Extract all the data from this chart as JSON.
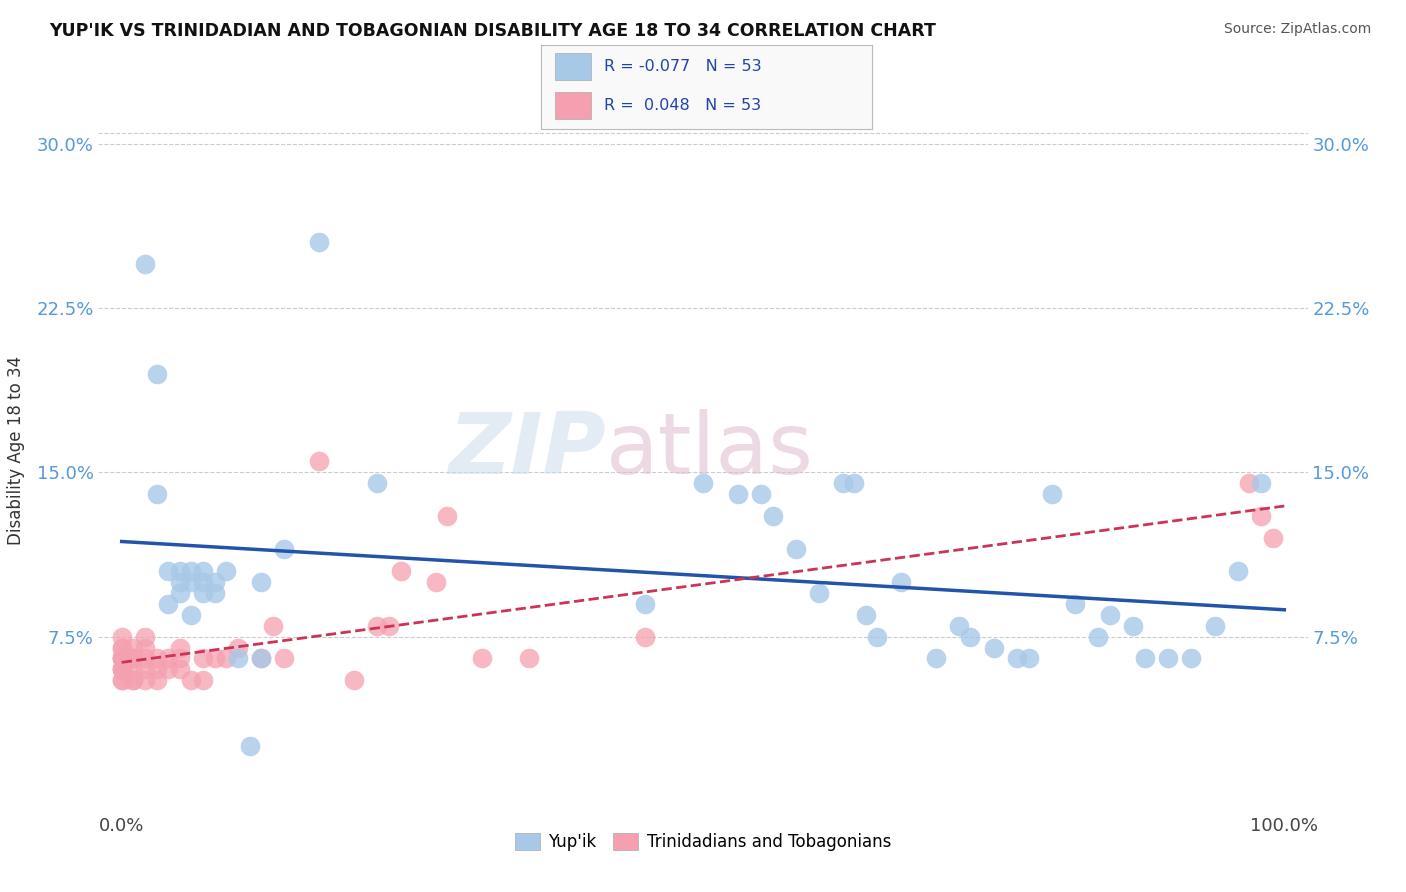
{
  "title": "YUP'IK VS TRINIDADIAN AND TOBAGONIAN DISABILITY AGE 18 TO 34 CORRELATION CHART",
  "source": "Source: ZipAtlas.com",
  "ylabel": "Disability Age 18 to 34",
  "watermark_part1": "ZIP",
  "watermark_part2": "atlas",
  "legend_labels": [
    "Yup'ik",
    "Trinidadians and Tobagonians"
  ],
  "yupik_R": "-0.077",
  "yupik_N": "53",
  "trinidadian_R": "0.048",
  "trinidadian_N": "53",
  "xlim": [
    -0.02,
    1.02
  ],
  "ylim": [
    -0.005,
    0.325
  ],
  "x_ticks": [
    0.0,
    1.0
  ],
  "x_tick_labels": [
    "0.0%",
    "100.0%"
  ],
  "y_ticks": [
    0.075,
    0.15,
    0.225,
    0.3
  ],
  "y_tick_labels": [
    "7.5%",
    "15.0%",
    "22.5%",
    "30.0%"
  ],
  "yupik_color": "#a8c8e8",
  "trinidadian_color": "#f5a0b0",
  "yupik_line_color": "#2255aa",
  "trinidadian_line_color": "#cc3355",
  "background_color": "#ffffff",
  "grid_color": "#cccccc",
  "yupik_x": [
    0.02,
    0.03,
    0.03,
    0.04,
    0.04,
    0.05,
    0.05,
    0.05,
    0.06,
    0.06,
    0.06,
    0.07,
    0.07,
    0.07,
    0.08,
    0.08,
    0.09,
    0.1,
    0.11,
    0.12,
    0.12,
    0.14,
    0.17,
    0.22,
    0.45,
    0.5,
    0.53,
    0.55,
    0.56,
    0.58,
    0.6,
    0.62,
    0.63,
    0.64,
    0.65,
    0.67,
    0.7,
    0.72,
    0.73,
    0.75,
    0.77,
    0.78,
    0.8,
    0.82,
    0.84,
    0.85,
    0.87,
    0.88,
    0.9,
    0.92,
    0.94,
    0.96,
    0.98
  ],
  "yupik_y": [
    0.245,
    0.195,
    0.14,
    0.105,
    0.09,
    0.105,
    0.1,
    0.095,
    0.1,
    0.105,
    0.085,
    0.105,
    0.1,
    0.095,
    0.1,
    0.095,
    0.105,
    0.065,
    0.025,
    0.065,
    0.1,
    0.115,
    0.255,
    0.145,
    0.09,
    0.145,
    0.14,
    0.14,
    0.13,
    0.115,
    0.095,
    0.145,
    0.145,
    0.085,
    0.075,
    0.1,
    0.065,
    0.08,
    0.075,
    0.07,
    0.065,
    0.065,
    0.14,
    0.09,
    0.075,
    0.085,
    0.08,
    0.065,
    0.065,
    0.065,
    0.08,
    0.105,
    0.145
  ],
  "trinidadian_x": [
    0.0,
    0.0,
    0.0,
    0.0,
    0.0,
    0.0,
    0.0,
    0.0,
    0.0,
    0.0,
    0.0,
    0.0,
    0.01,
    0.01,
    0.01,
    0.01,
    0.01,
    0.01,
    0.02,
    0.02,
    0.02,
    0.02,
    0.02,
    0.03,
    0.03,
    0.03,
    0.04,
    0.04,
    0.05,
    0.05,
    0.05,
    0.06,
    0.07,
    0.07,
    0.08,
    0.09,
    0.1,
    0.12,
    0.13,
    0.14,
    0.17,
    0.2,
    0.22,
    0.23,
    0.24,
    0.27,
    0.28,
    0.31,
    0.35,
    0.45,
    0.97,
    0.98,
    0.99
  ],
  "trinidadian_y": [
    0.055,
    0.055,
    0.06,
    0.06,
    0.06,
    0.065,
    0.065,
    0.065,
    0.065,
    0.07,
    0.07,
    0.075,
    0.055,
    0.055,
    0.06,
    0.065,
    0.065,
    0.07,
    0.055,
    0.06,
    0.065,
    0.07,
    0.075,
    0.055,
    0.06,
    0.065,
    0.06,
    0.065,
    0.06,
    0.065,
    0.07,
    0.055,
    0.055,
    0.065,
    0.065,
    0.065,
    0.07,
    0.065,
    0.08,
    0.065,
    0.155,
    0.055,
    0.08,
    0.08,
    0.105,
    0.1,
    0.13,
    0.065,
    0.065,
    0.075,
    0.145,
    0.13,
    0.12
  ]
}
